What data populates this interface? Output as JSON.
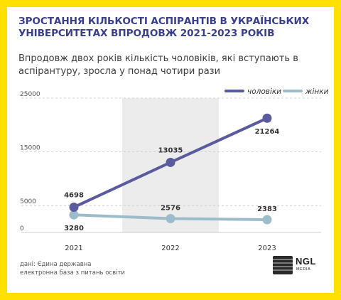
{
  "header": {
    "title": "ЗРОСТАННЯ КІЛЬКОСТІ АСПІРАНТІВ В УКРАЇНСЬКИХ УНІВЕРСИТЕТАХ ВПРОДОВЖ 2021-2023 РОКІВ",
    "subtitle": "Впродовж двох років кількість чоловіків, які вступають в аспірантуру, зросла у понад чотири рази"
  },
  "source": {
    "line1": "дані: Єдина державна",
    "line2": "електронна база з питань освіти"
  },
  "logo": {
    "text": "NGL",
    "sub": "MEDIA"
  },
  "colors": {
    "frame": "#ffe000",
    "title": "#3a3f8c",
    "men": "#5a5a9e",
    "women": "#9dbccb",
    "band": "#ececec"
  },
  "chart_data": {
    "type": "line",
    "x": [
      "2021",
      "2022",
      "2023"
    ],
    "series": [
      {
        "name": "чоловіки",
        "values": [
          4698,
          13035,
          21264
        ],
        "labels": [
          "4698",
          "13035",
          "21264"
        ]
      },
      {
        "name": "жінки",
        "values": [
          3280,
          2576,
          2383
        ],
        "labels": [
          "3280",
          "2576",
          "2383"
        ]
      }
    ],
    "y_ticks": [
      0,
      5000,
      15000,
      25000
    ],
    "y_tick_labels": [
      "0",
      "5000",
      "15000",
      "25000"
    ],
    "ylim": [
      0,
      25000
    ],
    "highlight_x": "2022",
    "grid": false,
    "legend_position": "top-right"
  }
}
